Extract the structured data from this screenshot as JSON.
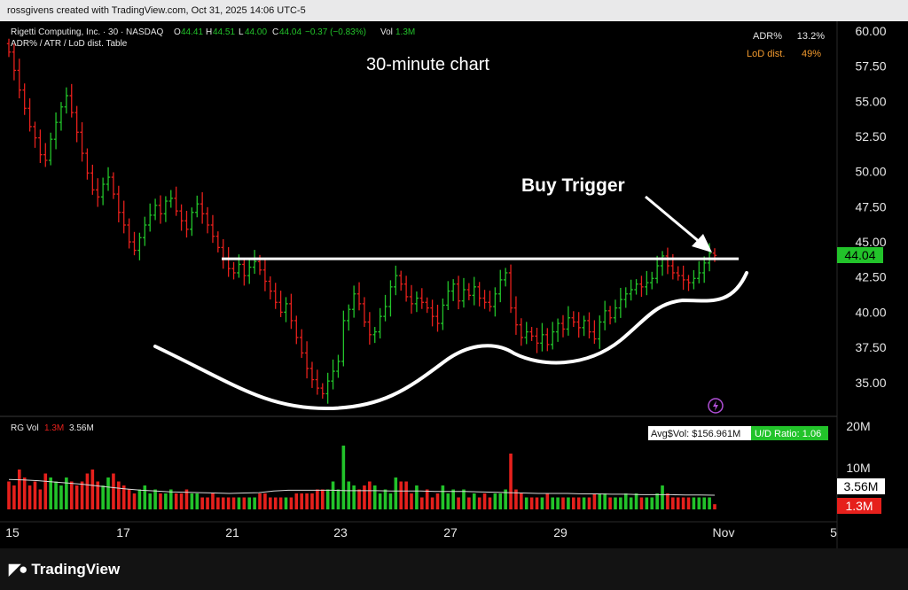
{
  "header": {
    "credit": "rossgivens created with TradingView.com, Oct 31, 2025 14:06 UTC-5"
  },
  "legend": {
    "symbol_line": "Rigetti Computing, Inc. · 30 · NASDAQ",
    "o_label": "O",
    "o_value": "44.41",
    "h_label": "H",
    "h_value": "44.51",
    "l_label": "L",
    "l_value": "44.00",
    "c_label": "C",
    "c_value": "44.04",
    "change": "−0.37 (−0.83%)",
    "vol_label": "Vol",
    "vol_value": "1.3M",
    "indicator_line": "ADR% / ATR / LoD dist. Table"
  },
  "table": {
    "adr_label": "ADR%",
    "adr_value": "13.2%",
    "lod_label": "LoD dist.",
    "lod_value": "49%"
  },
  "annotations": {
    "chart_title": "30-minute chart",
    "buy_trigger": "Buy Trigger"
  },
  "volume_pane": {
    "legend_name": "RG Vol",
    "legend_vol": "1.3M",
    "legend_ma": "3.56M",
    "avg_label": "Avg$Vol: $156.961M",
    "ud_label": "U/D Ratio: 1.06",
    "ma_tag": "3.56M",
    "vol_tag": "1.3M"
  },
  "price_tag": "44.04",
  "footer": {
    "brand": "TradingView"
  },
  "colors": {
    "up": "#22c32a",
    "down": "#e6201c",
    "bg": "#131313",
    "tag_green": "#22c32a",
    "tag_red": "#e6201c"
  },
  "icons": {
    "alert": "lightning-bolt-icon",
    "logo": "tradingview-logo-icon"
  },
  "chart_data": {
    "type": "candlestick",
    "price_axis_ticks": [
      60.0,
      57.5,
      55.0,
      52.5,
      50.0,
      47.5,
      45.0,
      42.5,
      40.0,
      37.5,
      35.0
    ],
    "volume_axis_ticks": [
      "20M",
      "10M"
    ],
    "x_tick_labels": [
      "15",
      "17",
      "21",
      "23",
      "27",
      "29",
      "Nov",
      "5"
    ],
    "resistance_level": 43.8,
    "last_price": 44.04,
    "closes": [
      58.5,
      57.2,
      55.8,
      54.5,
      53.2,
      52.4,
      51.2,
      50.8,
      52.3,
      53.5,
      54.6,
      55.4,
      54.2,
      52.8,
      51.3,
      49.9,
      48.7,
      48.2,
      49.1,
      49.6,
      48.4,
      47.1,
      46.2,
      45.0,
      44.4,
      45.3,
      46.2,
      46.9,
      47.6,
      47.0,
      47.9,
      48.1,
      47.2,
      46.5,
      45.9,
      47.1,
      47.7,
      47.0,
      46.2,
      45.4,
      44.6,
      43.8,
      43.1,
      42.8,
      43.4,
      42.6,
      43.2,
      43.6,
      43.0,
      42.2,
      41.5,
      40.7,
      40.0,
      40.6,
      39.4,
      38.2,
      37.1,
      36.0,
      35.2,
      34.6,
      34.2,
      35.1,
      35.8,
      36.5,
      39.4,
      40.2,
      41.3,
      40.6,
      39.3,
      38.4,
      38.6,
      39.7,
      40.4,
      41.8,
      42.6,
      42.0,
      41.1,
      40.6,
      41.0,
      40.7,
      40.3,
      39.7,
      39.2,
      40.5,
      41.5,
      42.0,
      40.8,
      41.6,
      41.2,
      41.8,
      41.0,
      40.7,
      40.4,
      41.3,
      42.3,
      42.8,
      40.3,
      39.1,
      38.2,
      38.6,
      38.3,
      37.8,
      38.4,
      37.7,
      38.6,
      39.2,
      38.8,
      39.6,
      39.3,
      38.9,
      39.4,
      38.6,
      38.1,
      39.3,
      40.1,
      39.6,
      40.3,
      40.9,
      41.3,
      41.6,
      42.0,
      41.8,
      42.1,
      42.4,
      43.3,
      44.0,
      43.3,
      42.8,
      42.6,
      42.3,
      42.1,
      42.4,
      42.8,
      43.5,
      44.2,
      44.04
    ],
    "volumes_m": [
      7,
      6,
      10,
      8,
      6,
      7,
      5,
      9,
      8,
      7,
      6,
      8,
      7,
      6,
      7,
      9,
      10,
      7,
      6,
      8,
      9,
      7,
      6,
      5,
      4,
      5,
      6,
      4,
      5,
      4,
      4,
      5,
      4,
      4,
      5,
      4,
      4,
      3,
      3,
      4,
      3,
      3,
      3,
      3,
      3,
      3,
      3,
      3,
      4,
      4,
      3,
      3,
      3,
      3,
      3,
      4,
      4,
      4,
      4,
      5,
      5,
      5,
      7,
      5,
      16,
      7,
      6,
      5,
      6,
      7,
      6,
      4,
      5,
      4,
      8,
      7,
      7,
      4,
      6,
      3,
      5,
      3,
      4,
      6,
      4,
      5,
      3,
      5,
      3,
      4,
      3,
      4,
      3,
      4,
      4,
      5,
      14,
      5,
      4,
      3,
      3,
      3,
      3,
      4,
      3,
      3,
      3,
      3,
      3,
      3,
      3,
      3,
      4,
      4,
      4,
      3,
      3,
      3,
      4,
      3,
      4,
      3,
      3,
      3,
      4,
      6,
      4,
      3,
      3,
      3,
      3,
      3,
      3,
      3,
      3,
      1.3
    ],
    "volume_ma_m": [
      7.5,
      7.4,
      7.2,
      6.9,
      6.6,
      6.3,
      5.9,
      5.5,
      5.1,
      4.8,
      4.6,
      4.4,
      4.3,
      4.2,
      4.1,
      4.0,
      4.1,
      4.2,
      4.6,
      4.8,
      4.8,
      4.8,
      4.8,
      4.7,
      4.7,
      4.7,
      4.6,
      4.6,
      4.6,
      4.5,
      4.5,
      4.5,
      4.4,
      4.3,
      4.2,
      4.1,
      4.0,
      4.0,
      4.0,
      3.9,
      3.9,
      3.8,
      3.8,
      3.7,
      3.7,
      3.7,
      3.6,
      3.6,
      3.56
    ]
  }
}
